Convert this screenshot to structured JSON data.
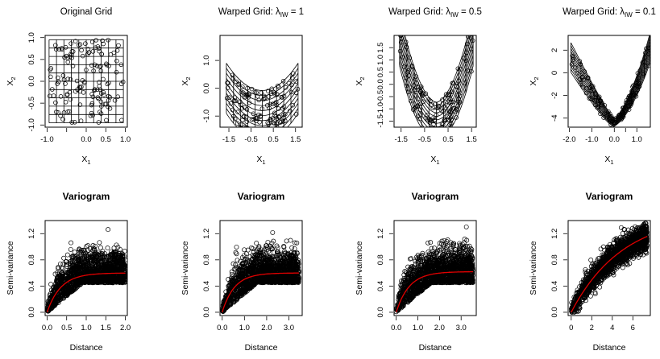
{
  "chart_data": [
    {
      "type": "scatter",
      "title": "Original Grid",
      "xlabel": "X1",
      "ylabel": "X2",
      "xlim": [
        -1.05,
        1.05
      ],
      "ylim": [
        -1.05,
        1.05
      ],
      "xticks": [
        -1.0,
        -0.5,
        0.0,
        0.5,
        1.0
      ],
      "xtick_labels": [
        "-1.0",
        "",
        "0.0",
        "0.5",
        "1.0"
      ],
      "yticks": [
        -1.0,
        -0.5,
        0.0,
        0.5,
        1.0
      ],
      "ytick_labels": [
        "-1.0",
        "-0.5",
        "0.0",
        "0.5",
        "1.0"
      ],
      "grid_lines": "uniform grid of straight lines, 11 by 11, over [-0.95, 0.95]"
    },
    {
      "type": "scatter",
      "title": "Warped Grid: λIW = 1",
      "xlabel": "X1",
      "ylabel": "X2",
      "xlim": [
        -1.9,
        1.8
      ],
      "ylim": [
        -1.4,
        1.9
      ],
      "xticks": [
        -1.5,
        -0.5,
        0.5,
        1.5
      ],
      "xtick_labels": [
        "-1.5",
        "-0.5",
        "0.5",
        "1.5"
      ],
      "yticks": [
        -1.0,
        0.0,
        1.0
      ],
      "ytick_labels": [
        "-1.0",
        "0.0",
        "1.0"
      ],
      "grid_lines": "parabolic warp of the grid, y ≈ 0.95·v + 0.9·(x² − 1)"
    },
    {
      "type": "scatter",
      "title": "Warped Grid: λIW = 0.5",
      "xlabel": "X1",
      "ylabel": "X2",
      "xlim": [
        -1.8,
        1.7
      ],
      "ylim": [
        -1.75,
        2.0
      ],
      "xticks": [
        -1.5,
        -0.5,
        0.5,
        1.5
      ],
      "xtick_labels": [
        "-1.5",
        "-0.5",
        "0.5",
        "1.5"
      ],
      "yticks": [
        -1.5,
        -1.0,
        -0.5,
        0.0,
        0.5,
        1.0,
        1.5
      ],
      "ytick_labels": [
        "-1.5",
        "-1.0",
        "-0.5",
        "0.0",
        "0.5",
        "1.0",
        "1.5"
      ],
      "grid_lines": "stronger parabolic warp"
    },
    {
      "type": "scatter",
      "title": "Warped Grid: λIW = 0.1",
      "xlabel": "X1",
      "ylabel": "X2",
      "xlim": [
        -2.05,
        1.6
      ],
      "ylim": [
        -4.8,
        3.3
      ],
      "xticks": [
        -2.0,
        -1.0,
        0.0,
        0.5,
        1.0
      ],
      "xtick_labels": [
        "-2.0",
        "-1.0",
        "0.0",
        "",
        "1.0"
      ],
      "yticks": [
        -4,
        -2,
        0,
        2
      ],
      "ytick_labels": [
        "-4",
        "-2",
        "0",
        "2"
      ],
      "grid_lines": "very strong V-shaped warp"
    },
    {
      "type": "scatter",
      "title": "Variogram",
      "xlabel": "Distance",
      "ylabel": "Semi-variance",
      "xlim": [
        -0.05,
        2.05
      ],
      "ylim": [
        -0.05,
        1.4
      ],
      "xticks": [
        0.0,
        0.5,
        1.0,
        1.5,
        2.0
      ],
      "xtick_labels": [
        "0.0",
        "0.5",
        "1.0",
        "1.5",
        "2.0"
      ],
      "yticks": [
        0.0,
        0.4,
        0.8,
        1.2
      ],
      "ytick_labels": [
        "0.0",
        "0.4",
        "0.8",
        "1.2"
      ],
      "fitted_curve": {
        "color": "#e00000",
        "model": "exponential",
        "sill": 0.6,
        "range": 0.35
      },
      "point_cloud_xmax": 2.0
    },
    {
      "type": "scatter",
      "title": "Variogram",
      "xlabel": "Distance",
      "ylabel": "Semi-variance",
      "xlim": [
        -0.1,
        3.6
      ],
      "ylim": [
        -0.05,
        1.4
      ],
      "xticks": [
        0.0,
        1.0,
        2.0,
        3.0
      ],
      "xtick_labels": [
        "0.0",
        "1.0",
        "2.0",
        "3.0"
      ],
      "yticks": [
        0.0,
        0.4,
        0.8,
        1.2
      ],
      "ytick_labels": [
        "0.0",
        "0.4",
        "0.8",
        "1.2"
      ],
      "fitted_curve": {
        "color": "#e00000",
        "model": "exponential",
        "sill": 0.6,
        "range": 0.55
      },
      "point_cloud_xmax": 3.45
    },
    {
      "type": "scatter",
      "title": "Variogram",
      "xlabel": "Distance",
      "ylabel": "Semi-variance",
      "xlim": [
        -0.1,
        3.7
      ],
      "ylim": [
        -0.05,
        1.4
      ],
      "xticks": [
        0.0,
        1.0,
        2.0,
        3.0
      ],
      "xtick_labels": [
        "0.0",
        "1.0",
        "2.0",
        "3.0"
      ],
      "yticks": [
        0.0,
        0.4,
        0.8,
        1.2
      ],
      "ytick_labels": [
        "0.0",
        "0.4",
        "0.8",
        "1.2"
      ],
      "fitted_curve": {
        "color": "#e00000",
        "model": "exponential",
        "sill": 0.62,
        "range": 0.6
      },
      "point_cloud_xmax": 3.55
    },
    {
      "type": "scatter",
      "title": "Variogram",
      "xlabel": "Distance",
      "ylabel": "Semi-variance",
      "xlim": [
        -0.3,
        7.7
      ],
      "ylim": [
        -0.05,
        1.4
      ],
      "xticks": [
        0,
        2,
        4,
        6
      ],
      "xtick_labels": [
        "0",
        "2",
        "4",
        "6"
      ],
      "yticks": [
        0.0,
        0.4,
        0.8,
        1.2
      ],
      "ytick_labels": [
        "0.0",
        "0.4",
        "0.8",
        "1.2"
      ],
      "fitted_curve": {
        "color": "#e00000",
        "model": "exponential",
        "sill": 1.5,
        "range": 5.0
      },
      "point_cloud_xmax": 7.4
    }
  ]
}
